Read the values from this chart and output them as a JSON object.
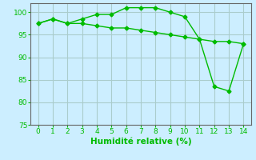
{
  "line1_x": [
    0,
    1,
    2,
    3,
    4,
    5,
    6,
    7,
    8,
    9,
    10,
    11,
    12,
    13,
    14
  ],
  "line1_y": [
    97.5,
    98.5,
    97.5,
    98.5,
    99.5,
    99.5,
    101,
    101,
    101,
    100,
    99,
    94,
    83.5,
    82.5,
    93
  ],
  "line2_x": [
    0,
    1,
    2,
    3,
    4,
    5,
    6,
    7,
    8,
    9,
    10,
    11,
    12,
    13,
    14
  ],
  "line2_y": [
    97.5,
    98.5,
    97.5,
    97.5,
    97,
    96.5,
    96.5,
    96,
    95.5,
    95,
    94.5,
    94,
    93.5,
    93.5,
    93
  ],
  "line_color": "#00bb00",
  "marker": "D",
  "marker_size": 2.5,
  "bg_color": "#cceeff",
  "grid_color": "#aacccc",
  "xlabel": "Humidité relative (%)",
  "xlabel_color": "#00bb00",
  "xlim": [
    -0.5,
    14.5
  ],
  "ylim": [
    75,
    102
  ],
  "yticks": [
    75,
    80,
    85,
    90,
    95,
    100
  ],
  "xticks": [
    0,
    1,
    2,
    3,
    4,
    5,
    6,
    7,
    8,
    9,
    10,
    11,
    12,
    13,
    14
  ],
  "tick_label_color": "#00bb00",
  "tick_fontsize": 6.5,
  "xlabel_fontsize": 7.5
}
